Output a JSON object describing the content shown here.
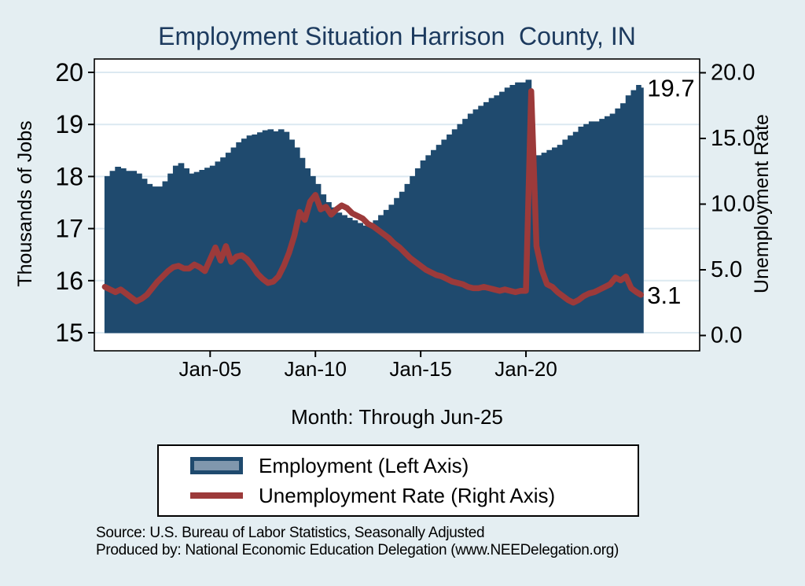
{
  "title": "Employment Situation Harrison  County, IN",
  "x_axis": {
    "label": "Month: Through Jun-25",
    "ticks": [
      {
        "label": "Jan-05",
        "value": 2005
      },
      {
        "label": "Jan-10",
        "value": 2010
      },
      {
        "label": "Jan-15",
        "value": 2015
      },
      {
        "label": "Jan-20",
        "value": 2020
      }
    ]
  },
  "left_axis": {
    "label": "Thousands of Jobs",
    "range": [
      15,
      20
    ],
    "ticks": [
      {
        "label": "20",
        "value": 20
      },
      {
        "label": "19",
        "value": 19
      },
      {
        "label": "18",
        "value": 18
      },
      {
        "label": "17",
        "value": 17
      },
      {
        "label": "16",
        "value": 16
      },
      {
        "label": "15",
        "value": 15
      }
    ]
  },
  "right_axis": {
    "label": "Unemployment Rate",
    "range": [
      0,
      20
    ],
    "ticks": [
      {
        "label": "20.0",
        "value": 20
      },
      {
        "label": "15.0",
        "value": 15
      },
      {
        "label": "10.0",
        "value": 10
      },
      {
        "label": "5.0",
        "value": 5
      },
      {
        "label": "0.0",
        "value": 0
      }
    ]
  },
  "annotations": [
    {
      "text": "19.7",
      "axis": "left",
      "value": 19.7
    },
    {
      "text": "3.1",
      "axis": "right",
      "value": 3.05
    }
  ],
  "legend": {
    "entries": [
      {
        "label": "Employment (Left Axis)",
        "swatch": "area"
      },
      {
        "label": "Unemployment Rate (Right Axis)",
        "swatch": "line"
      }
    ]
  },
  "footer": {
    "line1": "Source: U.S. Bureau of Labor Statistics, Seasonally Adjusted",
    "line2": "Produced by: National Economic Education Delegation (www.NEEDelegation.org)"
  },
  "colors": {
    "background": "#e4eef2",
    "plot_background": "#ffffff",
    "gridline": "#dce9f1",
    "title": "#1c3a5e",
    "employment_area": "#1f4a6e",
    "unemployment_line": "#9c3a3a",
    "legend_area_inner": "#8097ad",
    "axis_text": "#000000"
  },
  "chart_data": {
    "type": "area+line",
    "title": "Employment Situation Harrison  County, IN",
    "xlabel": "Month: Through Jun-25",
    "x_unit": "decimal_year_monthly_through_Jun-25",
    "ylim_left": [
      15,
      20
    ],
    "ylim_right": [
      0,
      20
    ],
    "grid": true,
    "legend_position": "below",
    "x": [
      2000.0,
      2000.25,
      2000.5,
      2000.75,
      2001.0,
      2001.25,
      2001.5,
      2001.75,
      2002.0,
      2002.25,
      2002.5,
      2002.75,
      2003.0,
      2003.25,
      2003.5,
      2003.75,
      2004.0,
      2004.25,
      2004.5,
      2004.75,
      2005.0,
      2005.25,
      2005.5,
      2005.75,
      2006.0,
      2006.25,
      2006.5,
      2006.75,
      2007.0,
      2007.25,
      2007.5,
      2007.75,
      2008.0,
      2008.25,
      2008.5,
      2008.75,
      2009.0,
      2009.25,
      2009.5,
      2009.75,
      2010.0,
      2010.25,
      2010.5,
      2010.75,
      2011.0,
      2011.25,
      2011.5,
      2011.75,
      2012.0,
      2012.25,
      2012.5,
      2012.75,
      2013.0,
      2013.25,
      2013.5,
      2013.75,
      2014.0,
      2014.25,
      2014.5,
      2014.75,
      2015.0,
      2015.25,
      2015.5,
      2015.75,
      2016.0,
      2016.25,
      2016.5,
      2016.75,
      2017.0,
      2017.25,
      2017.5,
      2017.75,
      2018.0,
      2018.25,
      2018.5,
      2018.75,
      2019.0,
      2019.25,
      2019.5,
      2019.75,
      2020.0,
      2020.25,
      2020.5,
      2020.75,
      2021.0,
      2021.25,
      2021.5,
      2021.75,
      2022.0,
      2022.25,
      2022.5,
      2022.75,
      2023.0,
      2023.25,
      2023.5,
      2023.75,
      2024.0,
      2024.25,
      2024.5,
      2024.75,
      2025.0,
      2025.25,
      2025.46
    ],
    "series": [
      {
        "name": "Employment (Left Axis)",
        "axis": "left",
        "style": "step-area",
        "final_value": 19.7,
        "values": [
          18.0,
          18.1,
          18.18,
          18.15,
          18.1,
          18.1,
          18.05,
          17.95,
          17.85,
          17.8,
          17.8,
          17.9,
          18.05,
          18.2,
          18.25,
          18.15,
          18.05,
          18.08,
          18.12,
          18.16,
          18.2,
          18.28,
          18.36,
          18.45,
          18.55,
          18.65,
          18.72,
          18.78,
          18.8,
          18.84,
          18.88,
          18.9,
          18.86,
          18.9,
          18.85,
          18.7,
          18.55,
          18.35,
          18.15,
          18.0,
          17.85,
          17.65,
          17.5,
          17.4,
          17.3,
          17.25,
          17.2,
          17.15,
          17.1,
          17.05,
          17.08,
          17.15,
          17.25,
          17.35,
          17.45,
          17.58,
          17.7,
          17.85,
          18.0,
          18.15,
          18.3,
          18.4,
          18.5,
          18.6,
          18.7,
          18.8,
          18.9,
          19.0,
          19.1,
          19.2,
          19.28,
          19.35,
          19.42,
          19.5,
          19.55,
          19.62,
          19.7,
          19.75,
          19.8,
          19.8,
          19.85,
          18.1,
          18.4,
          18.45,
          18.5,
          18.55,
          18.6,
          18.7,
          18.78,
          18.85,
          18.95,
          19.0,
          19.05,
          19.05,
          19.1,
          19.15,
          19.2,
          19.3,
          19.4,
          19.55,
          19.65,
          19.75,
          19.7
        ]
      },
      {
        "name": "Unemployment Rate (Right Axis)",
        "axis": "right",
        "style": "line",
        "final_value": 3.1,
        "values": [
          3.7,
          3.5,
          3.3,
          3.5,
          3.2,
          2.9,
          2.6,
          2.8,
          3.1,
          3.6,
          4.1,
          4.5,
          4.9,
          5.2,
          5.3,
          5.1,
          5.1,
          5.4,
          5.2,
          4.9,
          5.8,
          6.7,
          5.7,
          6.8,
          5.6,
          6.0,
          6.1,
          5.8,
          5.3,
          4.7,
          4.3,
          4.0,
          4.1,
          4.5,
          5.3,
          6.3,
          7.6,
          9.4,
          8.8,
          10.2,
          10.7,
          9.6,
          9.8,
          9.2,
          9.6,
          9.9,
          9.7,
          9.3,
          9.1,
          8.9,
          8.5,
          8.3,
          8.0,
          7.7,
          7.4,
          7.0,
          6.7,
          6.3,
          5.9,
          5.6,
          5.3,
          5.0,
          4.8,
          4.6,
          4.5,
          4.3,
          4.1,
          4.0,
          3.9,
          3.7,
          3.6,
          3.6,
          3.7,
          3.6,
          3.5,
          3.4,
          3.5,
          3.4,
          3.3,
          3.4,
          3.4,
          18.6,
          6.8,
          5.0,
          3.9,
          3.7,
          3.3,
          3.0,
          2.7,
          2.5,
          2.7,
          3.0,
          3.2,
          3.3,
          3.5,
          3.7,
          3.9,
          4.4,
          4.2,
          4.5,
          3.6,
          3.3,
          3.1
        ]
      }
    ]
  }
}
